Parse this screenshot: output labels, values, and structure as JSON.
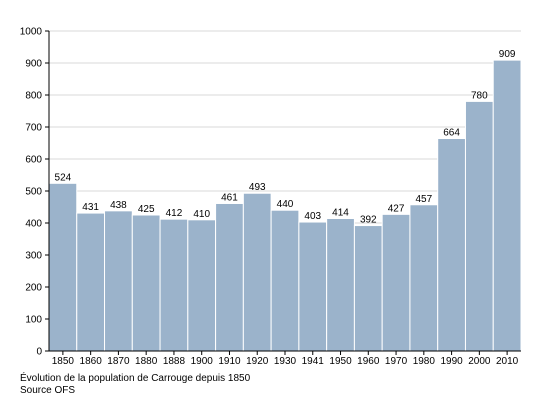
{
  "chart_data": {
    "type": "bar",
    "categories": [
      "1850",
      "1860",
      "1870",
      "1880",
      "1888",
      "1900",
      "1910",
      "1920",
      "1930",
      "1941",
      "1950",
      "1960",
      "1970",
      "1980",
      "1990",
      "2000",
      "2010"
    ],
    "values": [
      524,
      431,
      438,
      425,
      412,
      410,
      461,
      493,
      440,
      403,
      414,
      392,
      427,
      457,
      664,
      780,
      909
    ],
    "ylim": [
      0,
      1000
    ],
    "yticks": [
      0,
      100,
      200,
      300,
      400,
      500,
      600,
      700,
      800,
      900,
      1000
    ],
    "grid": true,
    "bar_color": "#9bb3cb",
    "bar_edge_color": "#ffffff",
    "grid_color": "#d8d8d8"
  },
  "caption": "Évolution de la population de Carrouge depuis 1850",
  "source": "Source OFS"
}
